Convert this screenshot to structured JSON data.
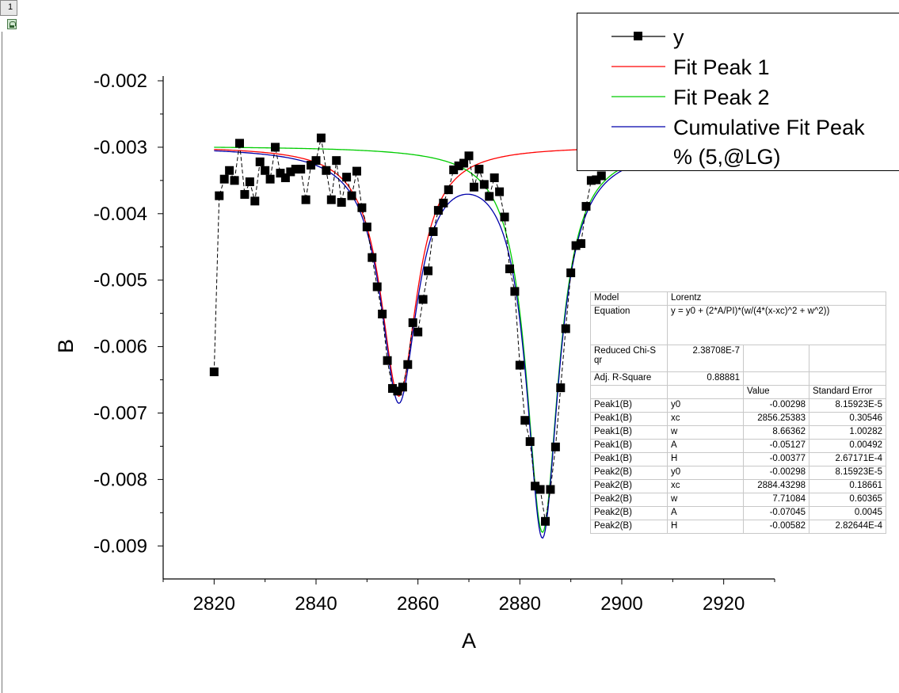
{
  "layer_tab": "1",
  "chart_data": {
    "type": "scatter",
    "xlabel": "A",
    "ylabel": "B",
    "xlim": [
      2810,
      2930
    ],
    "ylim": [
      -0.0095,
      -0.002
    ],
    "xticks": [
      2820,
      2840,
      2860,
      2880,
      2900,
      2920
    ],
    "yticks": [
      -0.002,
      -0.003,
      -0.004,
      -0.005,
      -0.006,
      -0.007,
      -0.008,
      -0.009
    ],
    "xtick_labels": [
      "2820",
      "2840",
      "2860",
      "2880",
      "2900",
      "2920"
    ],
    "ytick_labels": [
      "-0.002",
      "-0.003",
      "-0.004",
      "-0.005",
      "-0.006",
      "-0.007",
      "-0.008",
      "-0.009"
    ],
    "legend_placement": "top-right",
    "legend": [
      {
        "label": "y",
        "color": "#000000",
        "style": "line-square"
      },
      {
        "label": "Fit Peak 1",
        "color": "#ff0000",
        "style": "line"
      },
      {
        "label": "Fit Peak 2",
        "color": "#00cc00",
        "style": "line"
      },
      {
        "label": "Cumulative Fit Peak",
        "color": "#0000aa",
        "style": "line"
      },
      {
        "label": "% (5,@LG)",
        "color": "#000000",
        "style": "text"
      }
    ],
    "data_series": {
      "name": "y",
      "color": "#000000",
      "points": [
        [
          2820,
          -0.00638
        ],
        [
          2821,
          -0.00373
        ],
        [
          2822,
          -0.00348
        ],
        [
          2823,
          -0.00335
        ],
        [
          2824,
          -0.0035
        ],
        [
          2825,
          -0.00294
        ],
        [
          2826,
          -0.00371
        ],
        [
          2827,
          -0.00352
        ],
        [
          2828,
          -0.00381
        ],
        [
          2829,
          -0.00322
        ],
        [
          2830,
          -0.00335
        ],
        [
          2831,
          -0.00348
        ],
        [
          2832,
          -0.003
        ],
        [
          2833,
          -0.00339
        ],
        [
          2834,
          -0.00346
        ],
        [
          2835,
          -0.00337
        ],
        [
          2836,
          -0.00333
        ],
        [
          2837,
          -0.00333
        ],
        [
          2838,
          -0.00379
        ],
        [
          2839,
          -0.00327
        ],
        [
          2840,
          -0.0032
        ],
        [
          2841,
          -0.00286
        ],
        [
          2842,
          -0.00335
        ],
        [
          2843,
          -0.00379
        ],
        [
          2844,
          -0.0032
        ],
        [
          2845,
          -0.00383
        ],
        [
          2846,
          -0.00345
        ],
        [
          2847,
          -0.00373
        ],
        [
          2848,
          -0.00336
        ],
        [
          2849,
          -0.00391
        ],
        [
          2850,
          -0.0042
        ],
        [
          2851,
          -0.00466
        ],
        [
          2852,
          -0.0051
        ],
        [
          2853,
          -0.00551
        ],
        [
          2854,
          -0.00621
        ],
        [
          2855,
          -0.00663
        ],
        [
          2856,
          -0.00667
        ],
        [
          2857,
          -0.00661
        ],
        [
          2858,
          -0.00627
        ],
        [
          2859,
          -0.00564
        ],
        [
          2860,
          -0.00578
        ],
        [
          2861,
          -0.00529
        ],
        [
          2862,
          -0.00486
        ],
        [
          2863,
          -0.00427
        ],
        [
          2864,
          -0.00395
        ],
        [
          2865,
          -0.00384
        ],
        [
          2866,
          -0.00364
        ],
        [
          2867,
          -0.00334
        ],
        [
          2868,
          -0.00328
        ],
        [
          2869,
          -0.00324
        ],
        [
          2870,
          -0.00313
        ],
        [
          2871,
          -0.0036
        ],
        [
          2872,
          -0.00333
        ],
        [
          2873,
          -0.00356
        ],
        [
          2874,
          -0.00374
        ],
        [
          2875,
          -0.00346
        ],
        [
          2876,
          -0.00367
        ],
        [
          2877,
          -0.00405
        ],
        [
          2878,
          -0.00483
        ],
        [
          2879,
          -0.00517
        ],
        [
          2880,
          -0.00628
        ],
        [
          2881,
          -0.00711
        ],
        [
          2882,
          -0.00743
        ],
        [
          2883,
          -0.0081
        ],
        [
          2884,
          -0.00815
        ],
        [
          2885,
          -0.00863
        ],
        [
          2886,
          -0.00815
        ],
        [
          2887,
          -0.00751
        ],
        [
          2888,
          -0.00662
        ],
        [
          2889,
          -0.00573
        ],
        [
          2890,
          -0.00489
        ],
        [
          2891,
          -0.00448
        ],
        [
          2892,
          -0.00445
        ],
        [
          2893,
          -0.00389
        ],
        [
          2894,
          -0.0035
        ],
        [
          2895,
          -0.00349
        ],
        [
          2896,
          -0.00343
        ]
      ]
    },
    "fit_model": {
      "model": "Lorentz",
      "peak1": {
        "y0": -0.00298,
        "xc": 2856.25383,
        "w": 8.66362,
        "A": -0.05127
      },
      "peak2": {
        "y0": -0.00298,
        "xc": 2884.43298,
        "w": 7.71084,
        "A": -0.07045
      },
      "fit_x_range": [
        2820,
        2930
      ]
    }
  },
  "param_table": {
    "model_label": "Model",
    "model_value": "Lorentz",
    "equation_label": "Equation",
    "equation_value": "y = y0 + (2*A/PI)*(w/(4*(x-xc)^2 + w^2))",
    "chisq_label": "Reduced Chi-S qr",
    "chisq_value": "2.38708E-7",
    "r2_label": "Adj. R-Square",
    "r2_value": "0.88881",
    "col_value": "Value",
    "col_error": "Standard Error",
    "rows": [
      [
        "Peak1(B)",
        "y0",
        "-0.00298",
        "8.15923E-5"
      ],
      [
        "Peak1(B)",
        "xc",
        "2856.25383",
        "0.30546"
      ],
      [
        "Peak1(B)",
        "w",
        "8.66362",
        "1.00282"
      ],
      [
        "Peak1(B)",
        "A",
        "-0.05127",
        "0.00492"
      ],
      [
        "Peak1(B)",
        "H",
        "-0.00377",
        "2.67171E-4"
      ],
      [
        "Peak2(B)",
        "y0",
        "-0.00298",
        "8.15923E-5"
      ],
      [
        "Peak2(B)",
        "xc",
        "2884.43298",
        "0.18661"
      ],
      [
        "Peak2(B)",
        "w",
        "7.71084",
        "0.60365"
      ],
      [
        "Peak2(B)",
        "A",
        "-0.07045",
        "0.0045"
      ],
      [
        "Peak2(B)",
        "H",
        "-0.00582",
        "2.82644E-4"
      ]
    ]
  }
}
